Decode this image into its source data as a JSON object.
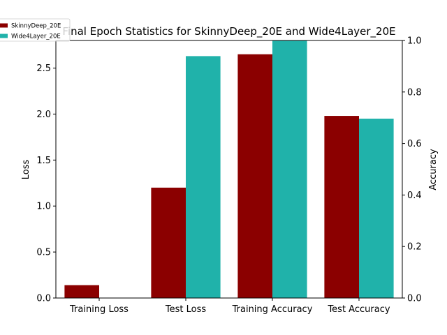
{
  "chart_data": {
    "type": "bar",
    "title": "Final Epoch Statistics for SkinnyDeep_20E and Wide4Layer_20E",
    "categories": [
      "Training Loss",
      "Test Loss",
      "Training Accuracy",
      "Test Accuracy"
    ],
    "series": [
      {
        "name": "SkinnyDeep_20E",
        "color": "#8b0000",
        "values": [
          0.14,
          1.2,
          2.65,
          1.98
        ]
      },
      {
        "name": "Wide4Layer_20E",
        "color": "#20b2aa",
        "values": [
          0.0,
          2.63,
          2.8,
          1.95
        ]
      }
    ],
    "ylabel": "Loss",
    "ylim": [
      0,
      2.8
    ],
    "yticks": [
      "0.0",
      "0.5",
      "1.0",
      "1.5",
      "2.0",
      "2.5"
    ],
    "y2label": "Accuracy",
    "y2lim": [
      0,
      1.0
    ],
    "y2ticks": [
      "0.0",
      "0.2",
      "0.4",
      "0.6",
      "0.8",
      "1.0"
    ],
    "legend": "top-left",
    "grid": false
  }
}
